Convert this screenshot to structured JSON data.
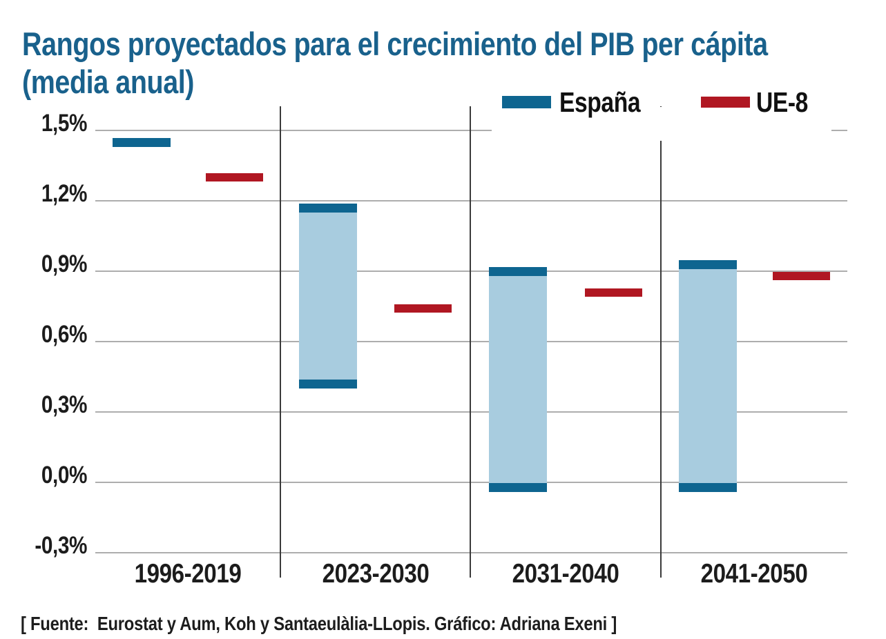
{
  "title": {
    "full": "Rangos proyectados para el crecimiento del PIB per cápita (media anual)"
  },
  "legend": {
    "items": [
      {
        "label": "España",
        "color": "#0E6590"
      },
      {
        "label": "UE-8",
        "color": "#B01722"
      }
    ]
  },
  "source_note": "[ Fuente:  Eurostat y Aum, Koh y Santaeulàlia-LLopis. Gráfico: Adriana Exeni ]",
  "colors": {
    "title": "#19618C",
    "espana_dark": "#0E6590",
    "espana_fill": "#A8CCDF",
    "ue8_red": "#B01722",
    "gridline": "#ADADAD",
    "separator": "#3A3A3A",
    "axis_text": "#1C1C1C"
  },
  "chart_data": {
    "type": "range-bar",
    "title": "Rangos proyectados para el crecimiento del PIB per cápita (media anual)",
    "unit": "%",
    "categories": [
      "1996-2019",
      "2023-2030",
      "2031-2040",
      "2041-2050"
    ],
    "series": [
      {
        "name": "España",
        "style": "range",
        "ranges": [
          [
            1.45,
            1.45
          ],
          [
            0.42,
            1.17
          ],
          [
            -0.02,
            0.9
          ],
          [
            -0.02,
            0.93
          ]
        ]
      },
      {
        "name": "UE-8",
        "style": "dash",
        "values": [
          1.3,
          0.74,
          0.81,
          0.88
        ]
      }
    ],
    "yticks": [
      {
        "label": "1,5%",
        "value": 1.5
      },
      {
        "label": "1,2%",
        "value": 1.2
      },
      {
        "label": "0,9%",
        "value": 0.9
      },
      {
        "label": "0,6%",
        "value": 0.6
      },
      {
        "label": "0,3%",
        "value": 0.3
      },
      {
        "label": "0,0%",
        "value": 0.0
      },
      {
        "label": "-0,3%",
        "value": -0.3
      }
    ],
    "ylim": [
      -0.3,
      1.5
    ],
    "xlabel": "",
    "ylabel": "",
    "grid": "horizontal",
    "legend_position": "top-right"
  }
}
